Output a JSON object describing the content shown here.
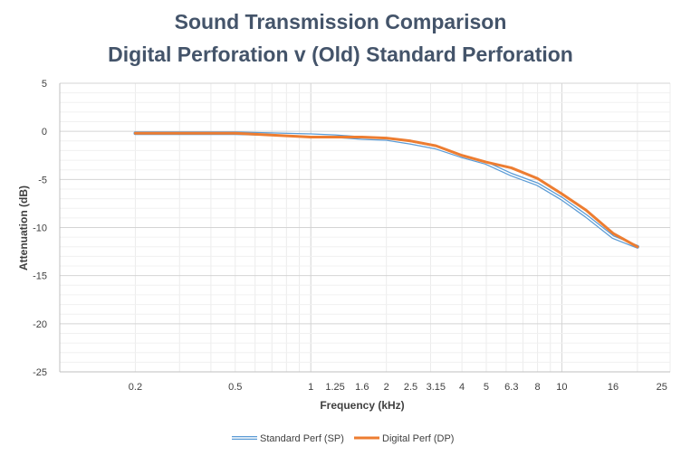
{
  "chart_data": {
    "type": "line",
    "title": [
      "Sound Transmission Comparison",
      "Digital Perforation v (Old)  Standard Perforation"
    ],
    "xlabel": "Frequency (kHz)",
    "ylabel": "Attenuation (dB)",
    "x_scale": "log",
    "xlim": [
      0.1,
      27
    ],
    "ylim": [
      -25,
      5
    ],
    "x_ticks": [
      0.2,
      0.5,
      1,
      1.25,
      1.6,
      2,
      2.5,
      3.15,
      4,
      5,
      6.3,
      8,
      10,
      16,
      25
    ],
    "x_tick_labels": [
      "0.2",
      "0.5",
      "1",
      "1.25",
      "1.6",
      "2",
      "2.5",
      "3.15",
      "4",
      "5",
      "6.3",
      "8",
      "10",
      "16",
      "25"
    ],
    "y_ticks": [
      5,
      0,
      -5,
      -10,
      -15,
      -20,
      -25
    ],
    "y_tick_labels": [
      "5",
      "0",
      "-5",
      "-10",
      "-15",
      "-20",
      "-25"
    ],
    "grid": true,
    "legend_position": "bottom",
    "series": [
      {
        "name": "Standard Perf (SP)",
        "color": "#5b9bd5",
        "style": "outlined",
        "x": [
          0.2,
          0.5,
          1,
          1.25,
          1.6,
          2,
          2.5,
          3.15,
          4,
          5,
          6.3,
          8,
          10,
          12.5,
          16,
          20
        ],
        "y": [
          -0.2,
          -0.2,
          -0.4,
          -0.5,
          -0.7,
          -0.8,
          -1.2,
          -1.7,
          -2.6,
          -3.3,
          -4.5,
          -5.5,
          -7.0,
          -8.8,
          -11.0,
          -12.0
        ]
      },
      {
        "name": "Digital Perf (DP)",
        "color": "#ed7d31",
        "style": "solid",
        "x": [
          0.2,
          0.5,
          1,
          1.25,
          1.6,
          2,
          2.5,
          3.15,
          4,
          5,
          6.3,
          8,
          10,
          12.5,
          16,
          20
        ],
        "y": [
          -0.2,
          -0.2,
          -0.6,
          -0.6,
          -0.6,
          -0.7,
          -1.0,
          -1.5,
          -2.5,
          -3.2,
          -3.8,
          -4.9,
          -6.5,
          -8.2,
          -10.6,
          -12.0
        ]
      }
    ]
  }
}
